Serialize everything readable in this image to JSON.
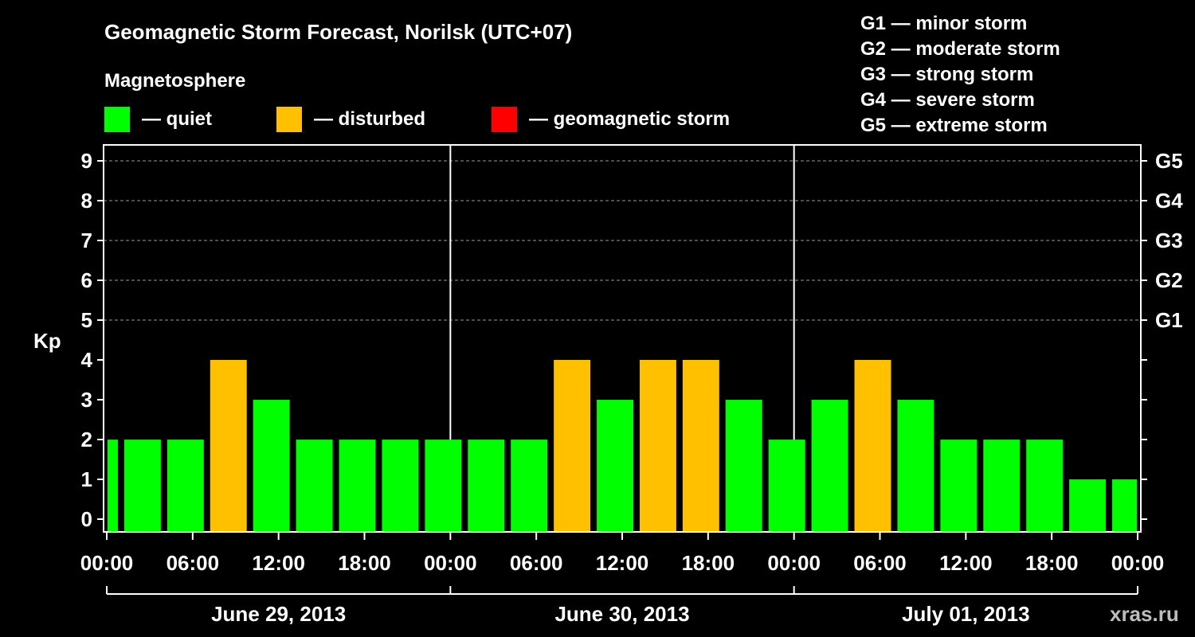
{
  "chart_data": {
    "type": "bar",
    "title": "Geomagnetic Storm Forecast, Norilsk (UTC+07)",
    "ylabel": "Kp",
    "ylim": [
      0,
      9
    ],
    "y_ticks": [
      "0",
      "1",
      "2",
      "3",
      "4",
      "5",
      "6",
      "7",
      "8",
      "9"
    ],
    "right_ticks": [
      {
        "kp": 5,
        "label": "G1"
      },
      {
        "kp": 6,
        "label": "G2"
      },
      {
        "kp": 7,
        "label": "G3"
      },
      {
        "kp": 8,
        "label": "G4"
      },
      {
        "kp": 9,
        "label": "G5"
      }
    ],
    "x_tick_labels": [
      "00:00",
      "06:00",
      "12:00",
      "18:00",
      "00:00",
      "06:00",
      "12:00",
      "18:00",
      "00:00",
      "06:00",
      "12:00",
      "18:00",
      "00:00"
    ],
    "x_range_hours": [
      0,
      72
    ],
    "dates": [
      "June 29, 2013",
      "June 30, 2013",
      "July 01, 2013"
    ],
    "bars": [
      {
        "start": 0,
        "end": 1,
        "kp": 2,
        "state": "quiet"
      },
      {
        "start": 1,
        "end": 4,
        "kp": 2,
        "state": "quiet"
      },
      {
        "start": 4,
        "end": 7,
        "kp": 2,
        "state": "quiet"
      },
      {
        "start": 7,
        "end": 10,
        "kp": 4,
        "state": "disturbed"
      },
      {
        "start": 10,
        "end": 13,
        "kp": 3,
        "state": "quiet"
      },
      {
        "start": 13,
        "end": 16,
        "kp": 2,
        "state": "quiet"
      },
      {
        "start": 16,
        "end": 19,
        "kp": 2,
        "state": "quiet"
      },
      {
        "start": 19,
        "end": 22,
        "kp": 2,
        "state": "quiet"
      },
      {
        "start": 22,
        "end": 25,
        "kp": 2,
        "state": "quiet"
      },
      {
        "start": 25,
        "end": 28,
        "kp": 2,
        "state": "quiet"
      },
      {
        "start": 28,
        "end": 31,
        "kp": 2,
        "state": "quiet"
      },
      {
        "start": 31,
        "end": 34,
        "kp": 4,
        "state": "disturbed"
      },
      {
        "start": 34,
        "end": 37,
        "kp": 3,
        "state": "quiet"
      },
      {
        "start": 37,
        "end": 40,
        "kp": 4,
        "state": "disturbed"
      },
      {
        "start": 40,
        "end": 43,
        "kp": 4,
        "state": "disturbed"
      },
      {
        "start": 43,
        "end": 46,
        "kp": 3,
        "state": "quiet"
      },
      {
        "start": 46,
        "end": 49,
        "kp": 2,
        "state": "quiet"
      },
      {
        "start": 49,
        "end": 52,
        "kp": 3,
        "state": "quiet"
      },
      {
        "start": 52,
        "end": 55,
        "kp": 4,
        "state": "disturbed"
      },
      {
        "start": 55,
        "end": 58,
        "kp": 3,
        "state": "quiet"
      },
      {
        "start": 58,
        "end": 61,
        "kp": 2,
        "state": "quiet"
      },
      {
        "start": 61,
        "end": 64,
        "kp": 2,
        "state": "quiet"
      },
      {
        "start": 64,
        "end": 67,
        "kp": 2,
        "state": "quiet"
      },
      {
        "start": 67,
        "end": 70,
        "kp": 1,
        "state": "quiet"
      },
      {
        "start": 70,
        "end": 72,
        "kp": 1,
        "state": "quiet"
      }
    ]
  },
  "magnetosphere_title": "Magnetosphere",
  "legend": [
    {
      "state": "quiet",
      "label": "— quiet",
      "color": "#00ff00"
    },
    {
      "state": "disturbed",
      "label": "— disturbed",
      "color": "#ffc000"
    },
    {
      "state": "storm",
      "label": "— geomagnetic storm",
      "color": "#ff0000"
    }
  ],
  "storm_scale": [
    "G1 — minor storm",
    "G2 — moderate storm",
    "G3 — strong storm",
    "G4 — severe storm",
    "G5 — extreme storm"
  ],
  "credit": "xras.ru"
}
